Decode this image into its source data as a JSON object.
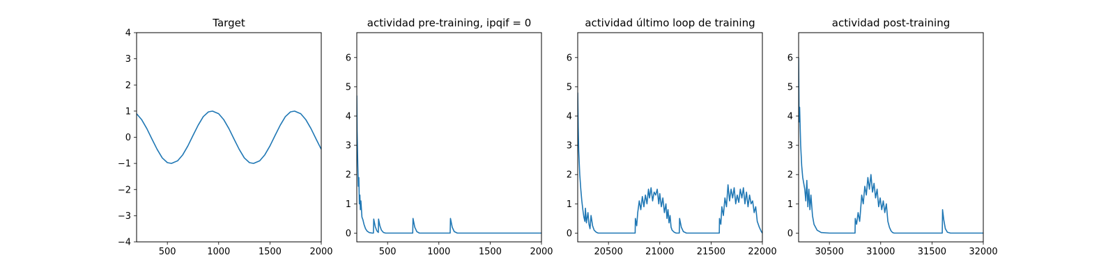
{
  "chart_data": [
    {
      "type": "line",
      "title": "Target",
      "xlim": [
        200,
        2000
      ],
      "ylim": [
        -4,
        4
      ],
      "xticks": [
        500,
        1000,
        1500,
        2000
      ],
      "xtick_labels": [
        "500",
        "1000",
        "1500",
        "2000"
      ],
      "yticks": [
        -4,
        -3,
        -2,
        -1,
        0,
        1,
        2,
        3,
        4
      ],
      "ytick_labels": [
        "−4",
        "−3",
        "−2",
        "−1",
        "0",
        "1",
        "2",
        "3",
        "4"
      ],
      "series": [
        {
          "color": "#1f77b4",
          "x": [
            200,
            250,
            300,
            350,
            400,
            450,
            500,
            540,
            600,
            650,
            700,
            750,
            800,
            850,
            900,
            940,
            1000,
            1050,
            1100,
            1150,
            1200,
            1250,
            1300,
            1340,
            1400,
            1450,
            1500,
            1550,
            1600,
            1650,
            1700,
            1740,
            1800,
            1850,
            1900,
            1950,
            2000
          ],
          "y": [
            0.9,
            0.67,
            0.33,
            -0.07,
            -0.46,
            -0.79,
            -0.97,
            -1.0,
            -0.9,
            -0.67,
            -0.33,
            0.07,
            0.46,
            0.79,
            0.97,
            1.0,
            0.9,
            0.67,
            0.33,
            -0.07,
            -0.46,
            -0.79,
            -0.97,
            -1.0,
            -0.9,
            -0.67,
            -0.33,
            0.07,
            0.46,
            0.79,
            0.97,
            1.0,
            0.9,
            0.67,
            0.33,
            -0.07,
            -0.46
          ]
        }
      ]
    },
    {
      "type": "line",
      "title": "actividad pre-training, ipqif = 0",
      "xlim": [
        200,
        2000
      ],
      "ylim": [
        -0.3,
        6.85
      ],
      "xticks": [
        500,
        1000,
        1500,
        2000
      ],
      "xtick_labels": [
        "500",
        "1000",
        "1500",
        "2000"
      ],
      "yticks": [
        0,
        1,
        2,
        3,
        4,
        5,
        6
      ],
      "ytick_labels": [
        "0",
        "1",
        "2",
        "3",
        "4",
        "5",
        "6"
      ],
      "series": [
        {
          "color": "#1f77b4",
          "x": [
            200,
            203,
            206,
            210,
            215,
            220,
            225,
            230,
            235,
            240,
            250,
            260,
            270,
            285,
            300,
            320,
            350,
            362,
            365,
            380,
            395,
            410,
            412,
            425,
            440,
            460,
            480,
            520,
            600,
            700,
            745,
            748,
            765,
            785,
            810,
            900,
            1000,
            1110,
            1113,
            1130,
            1150,
            1180,
            1300,
            1500,
            1800,
            2000
          ],
          "y": [
            4.7,
            3.5,
            3.0,
            2.3,
            1.6,
            1.9,
            1.0,
            1.3,
            0.8,
            1.1,
            0.55,
            0.45,
            0.3,
            0.15,
            0.07,
            0.02,
            0.0,
            0.0,
            0.48,
            0.22,
            0.08,
            0.02,
            0.48,
            0.25,
            0.1,
            0.02,
            0.0,
            0.0,
            0.0,
            0.0,
            0.0,
            0.5,
            0.2,
            0.05,
            0.0,
            0.0,
            0.0,
            0.0,
            0.5,
            0.2,
            0.05,
            0.0,
            0.0,
            0.0,
            0.0,
            0.0
          ]
        }
      ]
    },
    {
      "type": "line",
      "title": "actividad último loop de training",
      "xlim": [
        20200,
        22000
      ],
      "ylim": [
        -0.3,
        6.85
      ],
      "xticks": [
        20500,
        21000,
        21500,
        22000
      ],
      "xtick_labels": [
        "20500",
        "21000",
        "21500",
        "22000"
      ],
      "yticks": [
        0,
        1,
        2,
        3,
        4,
        5,
        6
      ],
      "ytick_labels": [
        "0",
        "1",
        "2",
        "3",
        "4",
        "5",
        "6"
      ],
      "series": [
        {
          "color": "#1f77b4",
          "x": [
            20200,
            20205,
            20210,
            20220,
            20230,
            20240,
            20250,
            20260,
            20270,
            20275,
            20285,
            20300,
            20310,
            20320,
            20330,
            20345,
            20360,
            20380,
            20400,
            20450,
            20550,
            20650,
            20760,
            20762,
            20775,
            20785,
            20800,
            20815,
            20830,
            20845,
            20860,
            20875,
            20890,
            20900,
            20915,
            20930,
            20945,
            20960,
            20975,
            20990,
            21000,
            21015,
            21030,
            21045,
            21060,
            21070,
            21080,
            21090,
            21100,
            21110,
            21120,
            21140,
            21160,
            21190,
            21193,
            21210,
            21230,
            21260,
            21350,
            21450,
            21580,
            21582,
            21595,
            21605,
            21620,
            21635,
            21650,
            21665,
            21680,
            21695,
            21710,
            21725,
            21740,
            21755,
            21770,
            21785,
            21800,
            21815,
            21830,
            21845,
            21860,
            21875,
            21890,
            21905,
            21920,
            21935,
            21950,
            21970,
            21990,
            22000
          ],
          "y": [
            4.8,
            3.6,
            2.8,
            2.0,
            1.5,
            1.1,
            0.8,
            0.55,
            0.4,
            0.85,
            0.35,
            0.7,
            0.3,
            0.15,
            0.6,
            0.25,
            0.1,
            0.03,
            0.0,
            0.0,
            0.0,
            0.0,
            0.0,
            0.5,
            0.25,
            0.7,
            1.1,
            0.8,
            1.25,
            0.9,
            1.3,
            1.0,
            1.5,
            1.2,
            1.55,
            1.1,
            1.4,
            1.3,
            1.5,
            1.0,
            1.35,
            0.9,
            1.2,
            0.7,
            1.0,
            0.5,
            0.8,
            0.35,
            0.6,
            0.2,
            0.1,
            0.03,
            0.0,
            0.0,
            0.5,
            0.2,
            0.05,
            0.0,
            0.0,
            0.0,
            0.0,
            0.5,
            0.3,
            0.9,
            0.6,
            1.2,
            0.9,
            1.65,
            1.1,
            1.5,
            1.2,
            1.55,
            1.0,
            1.3,
            1.05,
            1.5,
            1.2,
            1.55,
            1.0,
            1.4,
            0.9,
            1.3,
            1.0,
            1.1,
            0.7,
            0.9,
            0.4,
            0.2,
            0.05,
            0.0
          ]
        }
      ]
    },
    {
      "type": "line",
      "title": "actividad post-training",
      "xlim": [
        30200,
        32000
      ],
      "ylim": [
        -0.3,
        6.85
      ],
      "xticks": [
        30500,
        31000,
        31500,
        32000
      ],
      "xtick_labels": [
        "30500",
        "31000",
        "31500",
        "32000"
      ],
      "yticks": [
        0,
        1,
        2,
        3,
        4,
        5,
        6
      ],
      "ytick_labels": [
        "0",
        "1",
        "2",
        "3",
        "4",
        "5",
        "6"
      ],
      "series": [
        {
          "color": "#1f77b4",
          "x": [
            30200,
            30205,
            30210,
            30220,
            30230,
            30240,
            30250,
            30260,
            30270,
            30280,
            30290,
            30300,
            30310,
            30320,
            30335,
            30350,
            30380,
            30420,
            30500,
            30600,
            30750,
            30752,
            30765,
            30780,
            30795,
            30800,
            30815,
            30830,
            30845,
            30860,
            30875,
            30890,
            30905,
            30920,
            30935,
            30950,
            30965,
            30980,
            30995,
            31010,
            31025,
            31040,
            31055,
            31070,
            31085,
            31100,
            31115,
            31130,
            31160,
            31200,
            31300,
            31400,
            31500,
            31600,
            31603,
            31615,
            31630,
            31650,
            31680,
            31750,
            31900,
            32000
          ],
          "y": [
            6.0,
            3.8,
            4.3,
            3.0,
            2.3,
            1.9,
            1.7,
            1.5,
            1.1,
            1.8,
            0.9,
            1.5,
            0.8,
            1.3,
            0.6,
            0.3,
            0.1,
            0.02,
            0.0,
            0.0,
            0.0,
            0.5,
            0.3,
            0.7,
            0.4,
            0.6,
            1.3,
            1.0,
            1.6,
            1.3,
            1.9,
            1.5,
            2.0,
            1.4,
            1.7,
            1.2,
            1.5,
            0.9,
            1.2,
            0.8,
            1.1,
            0.7,
            1.0,
            0.4,
            0.2,
            0.08,
            0.02,
            0.0,
            0.0,
            0.0,
            0.0,
            0.0,
            0.0,
            0.0,
            0.8,
            0.45,
            0.15,
            0.03,
            0.0,
            0.0,
            0.0,
            0.0
          ]
        }
      ]
    }
  ]
}
